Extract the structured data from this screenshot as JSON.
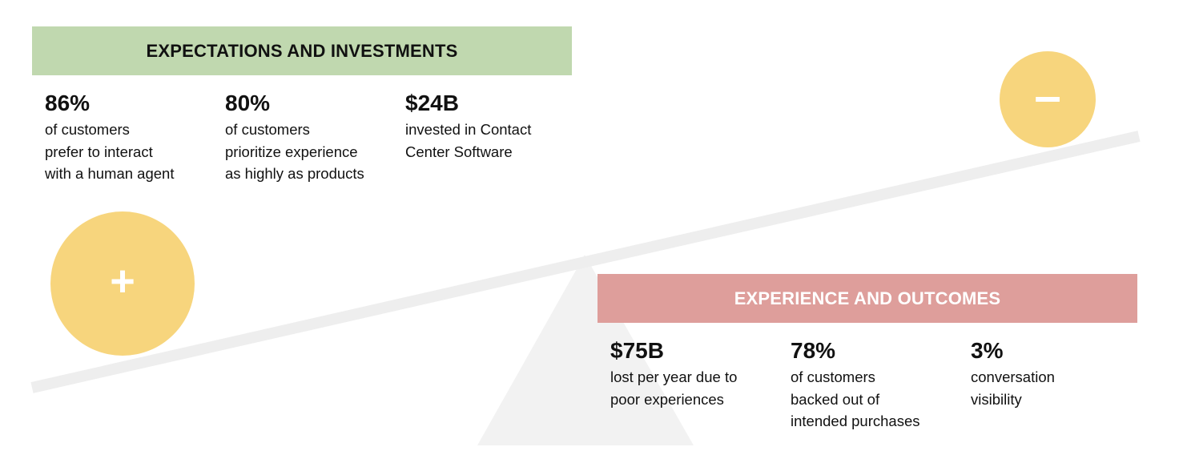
{
  "colors": {
    "green_banner": "#c0d8af",
    "red_banner": "#de9e9b",
    "circle_yellow": "#f7d57d",
    "beam_gray": "#eeeeee",
    "fulcrum_gray": "#f2f2f2"
  },
  "icons": {
    "plus": "+",
    "minus": "–"
  },
  "expectations": {
    "heading": "EXPECTATIONS AND INVESTMENTS",
    "stats": [
      {
        "value": "86%",
        "description": "of customers\nprefer to interact\nwith a human agent"
      },
      {
        "value": "80%",
        "description": "of customers\nprioritize experience\nas highly as products"
      },
      {
        "value": "$24B",
        "description": "invested in Contact\nCenter Software"
      }
    ]
  },
  "outcomes": {
    "heading": "EXPERIENCE AND OUTCOMES",
    "stats": [
      {
        "value": "$75B",
        "description": "lost per year due to\npoor experiences"
      },
      {
        "value": "78%",
        "description": "of customers\nbacked out of\nintended purchases"
      },
      {
        "value": "3%",
        "description": "conversation\nvisibility"
      }
    ]
  }
}
